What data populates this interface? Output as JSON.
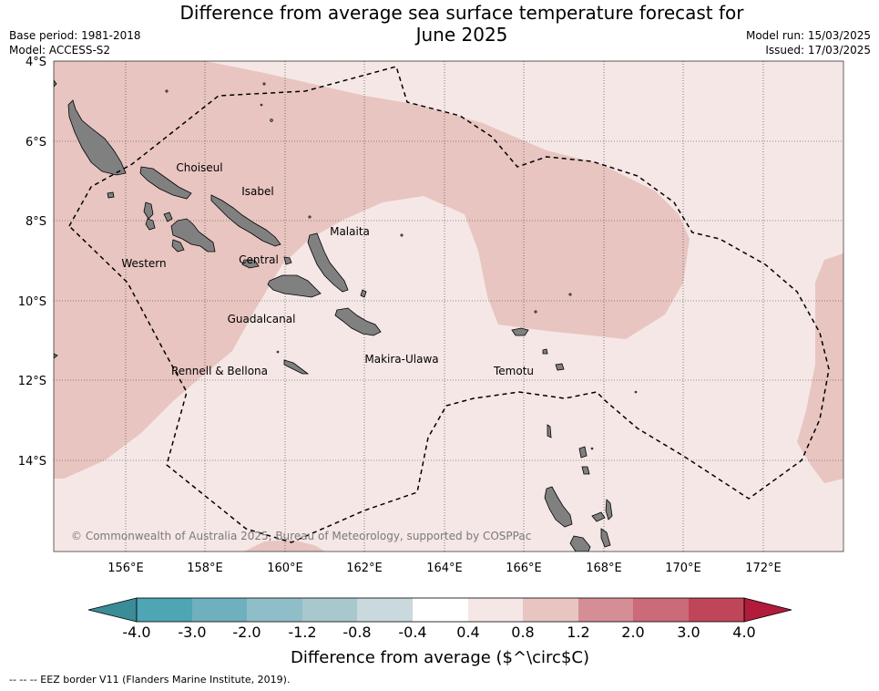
{
  "title_line1": "Difference from average sea surface temperature forecast for",
  "title_line2": "June 2025",
  "meta_left": {
    "base_period": "Base period: 1981-2018",
    "model": "Model: ACCESS-S2"
  },
  "meta_right": {
    "model_run": "Model run: 15/03/2025",
    "issued": "Issued: 17/03/2025"
  },
  "lat_labels": [
    "4°S",
    "6°S",
    "8°S",
    "10°S",
    "12°S",
    "14°S"
  ],
  "lon_labels": [
    "156°E",
    "158°E",
    "160°E",
    "162°E",
    "164°E",
    "166°E",
    "168°E",
    "170°E",
    "172°E"
  ],
  "regions": [
    "Choiseul",
    "Isabel",
    "Malaita",
    "Western",
    "Central",
    "Guadalcanal",
    "Rennell & Bellona",
    "Makira-Ulawa",
    "Temotu"
  ],
  "copyright": "© Commonwealth of Australia 2025, Bureau of Meteorology, supported by COSPPac",
  "colorbar": {
    "ticks": [
      "-4.0",
      "-3.0",
      "-2.0",
      "-1.2",
      "-0.8",
      "-0.4",
      "0.4",
      "0.8",
      "1.2",
      "2.0",
      "3.0",
      "4.0"
    ],
    "colors": [
      "#3a8c96",
      "#4ea5b4",
      "#6fb0bf",
      "#8fbec8",
      "#a9c8cd",
      "#c9d9dd",
      "#ffffff",
      "#f5e7e5",
      "#e8c5c1",
      "#d68e96",
      "#cb6a78",
      "#bf4658",
      "#b01c3a"
    ],
    "label": "Difference from average ($^\\circ$C)"
  },
  "map_colors": {
    "band_0_4_0_8": "#f5e7e5",
    "band_0_8_1_2": "#e8c5c1",
    "land": "#808080"
  },
  "footer": "--  --  -- EEZ border V11 (Flanders Marine Institute, 2019)."
}
